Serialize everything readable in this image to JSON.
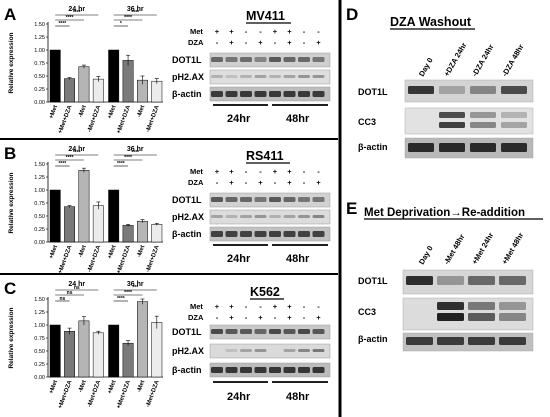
{
  "panels": {
    "A": {
      "letter": "A",
      "cell": "MV411"
    },
    "B": {
      "letter": "B",
      "cell": "RS411"
    },
    "C": {
      "letter": "C",
      "cell": "K562"
    },
    "D": {
      "letter": "D",
      "title": "DZA Washout",
      "lanes": [
        "Day 0",
        "+DZA 24hr",
        "-DZA 24hr",
        "-DZA 48hr"
      ],
      "rows": [
        "DOT1L",
        "CC3",
        "β-actin"
      ]
    },
    "E": {
      "letter": "E",
      "title": "Met Deprivation→Re-addition",
      "lanes": [
        "Day 0",
        "-Met 48hr",
        "+Met 24hr",
        "+Met 48hr"
      ],
      "rows": [
        "DOT1L",
        "CC3",
        "β-actin"
      ]
    }
  },
  "blot_abc": {
    "met_label": "Met",
    "dza_label": "DZA",
    "met_signs": [
      "+",
      "+",
      "-",
      "-",
      "+",
      "+",
      "-",
      "-"
    ],
    "dza_signs": [
      "-",
      "+",
      "-",
      "+",
      "-",
      "+",
      "-",
      "+"
    ],
    "rows": [
      "DOT1L",
      "pH2.AX",
      "β-actin"
    ],
    "time_labels": [
      "24hr",
      "48hr"
    ]
  },
  "chart_common": {
    "ylabel": "Relative expression",
    "yticks": [
      "0.00",
      "0.25",
      "0.50",
      "0.75",
      "1.00",
      "1.25",
      "1.50"
    ],
    "categories": [
      "+Met",
      "+Met+DZA",
      "-Met",
      "-Met+DZA",
      "+Met",
      "+Met+DZA",
      "-Met",
      "-Met+DZA"
    ],
    "time_labels": [
      "24 hr",
      "36 hr"
    ]
  },
  "chart_data": [
    {
      "type": "bar",
      "panel": "A",
      "ylim": [
        0,
        1.5
      ],
      "categories": [
        "+Met",
        "+Met+DZA",
        "-Met",
        "-Met+DZA",
        "+Met",
        "+Met+DZA",
        "-Met",
        "-Met+DZA"
      ],
      "values": [
        1.0,
        0.45,
        0.68,
        0.44,
        1.0,
        0.8,
        0.42,
        0.4
      ],
      "errors": [
        0,
        0.02,
        0.03,
        0.05,
        0,
        0.1,
        0.08,
        0.05
      ],
      "sig_24": [
        "****",
        "****",
        "****"
      ],
      "sig_36": [
        "****",
        "****",
        "*"
      ]
    },
    {
      "type": "bar",
      "panel": "B",
      "ylim": [
        0,
        1.5
      ],
      "categories": [
        "+Met",
        "+Met+DZA",
        "-Met",
        "-Met+DZA",
        "+Met",
        "+Met+DZA",
        "-Met",
        "-Met+DZA"
      ],
      "values": [
        1.0,
        0.68,
        1.38,
        0.7,
        1.0,
        0.32,
        0.4,
        0.34
      ],
      "errors": [
        0,
        0.02,
        0.04,
        0.07,
        0,
        0.02,
        0.03,
        0.02
      ],
      "sig_24": [
        "****",
        "****",
        "****"
      ],
      "sig_36": [
        "****",
        "****",
        "****"
      ]
    },
    {
      "type": "bar",
      "panel": "C",
      "ylim": [
        0,
        1.5
      ],
      "categories": [
        "+Met",
        "+Met+DZA",
        "-Met",
        "-Met+DZA",
        "+Met",
        "+Met+DZA",
        "-Met",
        "-Met+DZA"
      ],
      "values": [
        1.0,
        0.88,
        1.08,
        0.85,
        1.0,
        0.65,
        1.45,
        1.05
      ],
      "errors": [
        0,
        0.06,
        0.08,
        0.03,
        0,
        0.05,
        0.05,
        0.12
      ],
      "sig_24": [
        "ns",
        "ns",
        "ns"
      ],
      "sig_36": [
        "***",
        "****",
        "****"
      ]
    }
  ]
}
